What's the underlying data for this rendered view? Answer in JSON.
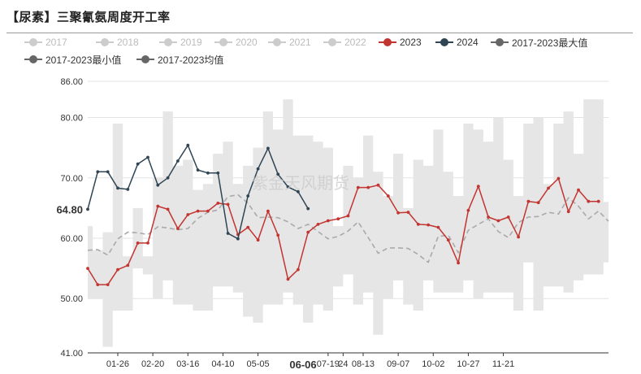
{
  "header": {
    "title": "【尿素】三聚氰氨周度开工率"
  },
  "watermark": "紫金天风期货",
  "legend": {
    "row1": [
      {
        "label": "2017",
        "color": "#cccccc"
      },
      {
        "label": "2018",
        "color": "#cccccc"
      },
      {
        "label": "2019",
        "color": "#cccccc"
      },
      {
        "label": "2020",
        "color": "#cccccc"
      },
      {
        "label": "2021",
        "color": "#cccccc"
      },
      {
        "label": "2022",
        "color": "#cccccc"
      },
      {
        "label": "2023",
        "color": "#c23531"
      },
      {
        "label": "2024",
        "color": "#2f4554"
      },
      {
        "label": "2017-2023最大值",
        "color": "#666666"
      }
    ],
    "row2": [
      {
        "label": "2017-2023最小值",
        "color": "#666666"
      },
      {
        "label": "2017-2023均值",
        "color": "#666666"
      }
    ]
  },
  "chart_data": {
    "type": "line",
    "ylim": [
      41,
      86
    ],
    "y_ticks": [
      {
        "value": 41,
        "label": "41.00"
      },
      {
        "value": 50,
        "label": "50.00"
      },
      {
        "value": 60,
        "label": "60.00"
      },
      {
        "value": 70,
        "label": "70.00"
      },
      {
        "value": 80,
        "label": "80.00"
      },
      {
        "value": 86,
        "label": "86.00"
      }
    ],
    "x_range": [
      0,
      52
    ],
    "x_ticks": [
      {
        "week": 3,
        "label": "01-26"
      },
      {
        "week": 6.5,
        "label": "02-20"
      },
      {
        "week": 10,
        "label": "03-16"
      },
      {
        "week": 13.5,
        "label": "04-10"
      },
      {
        "week": 17,
        "label": "05-05"
      },
      {
        "week": 24,
        "label": "07-19"
      },
      {
        "week": 27.5,
        "label": "08-13"
      },
      {
        "week": 31,
        "label": "09-07"
      },
      {
        "week": 34.5,
        "label": "10-02"
      },
      {
        "week": 38,
        "label": "10-27"
      },
      {
        "week": 41.5,
        "label": "11-21"
      }
    ],
    "x_extra_ticks": [
      {
        "week": 25.5,
        "label": "24"
      }
    ],
    "y_pointer": {
      "value": 64.8,
      "label": "64.80"
    },
    "x_pointer": {
      "week": 21.5,
      "label": "06-06"
    },
    "range_max": [
      62,
      58,
      61,
      79,
      57,
      65,
      57,
      70,
      81,
      72,
      73,
      68,
      69,
      74,
      76,
      69,
      72,
      75,
      81,
      78,
      83,
      77,
      77,
      76,
      75,
      62,
      72,
      70,
      77,
      71,
      67,
      74,
      65,
      73,
      72,
      78,
      71,
      67,
      79,
      78,
      76,
      80,
      73,
      67,
      79,
      80,
      69,
      79,
      81,
      74,
      83,
      83,
      66
    ],
    "range_min": [
      50,
      50,
      42,
      48,
      48,
      55,
      54,
      50,
      53,
      49,
      49,
      48,
      48,
      52,
      52,
      51,
      47,
      46,
      49,
      49,
      51,
      49,
      46,
      49,
      48,
      52,
      54,
      49,
      51,
      44,
      50,
      53,
      49,
      48,
      53,
      51,
      51,
      51,
      53,
      50,
      51,
      51,
      51,
      48,
      56,
      48,
      52,
      52,
      51,
      53,
      54,
      54,
      56
    ],
    "series": [
      {
        "name": "2017-2023均值",
        "color": "#aaaaaa",
        "dashed": true,
        "start_week": 0,
        "values": [
          58,
          58.1,
          57.2,
          59.9,
          61,
          60.9,
          60.6,
          61.9,
          61.7,
          61.4,
          61.6,
          63.3,
          64.3,
          64.7,
          66.9,
          67.2,
          65.8,
          63.4,
          63.5,
          63.4,
          62.7,
          61.6,
          62.3,
          61.1,
          59.9,
          60.3,
          61.2,
          62.7,
          60.1,
          57.5,
          58.4,
          58.4,
          58.3,
          57.3,
          56,
          60.3,
          60.5,
          57.6,
          61.3,
          62.3,
          63.2,
          61.1,
          60.1,
          62.6,
          63.5,
          63.6,
          64.3,
          64,
          66.7,
          65.3,
          63.2,
          64.5,
          62.8
        ]
      },
      {
        "name": "2023",
        "color": "#c23531",
        "dashed": false,
        "start_week": 0,
        "values": [
          55,
          52.3,
          52.3,
          54.8,
          55.5,
          59.2,
          59.2,
          65.3,
          64.8,
          61.6,
          63.9,
          64.5,
          64.5,
          65.8,
          65.6,
          60.6,
          61.8,
          59.7,
          64.5,
          60.5,
          53.2,
          54.8,
          61,
          62.3,
          62.9,
          63.2,
          63.7,
          68.4,
          68.4,
          68.8,
          67,
          64.2,
          64.3,
          62.3,
          62.2,
          61.8,
          59.7,
          55.9,
          64.6,
          68.6,
          63.5,
          62.9,
          63.5,
          60.2,
          66.1,
          65.9,
          68.3,
          69.9,
          64.4,
          68,
          66.1,
          66.1
        ]
      },
      {
        "name": "2024",
        "color": "#2f4554",
        "dashed": false,
        "start_week": 0,
        "values": [
          64.8,
          71,
          71,
          68.3,
          68.1,
          72.3,
          73.4,
          68.8,
          70,
          72.8,
          75.4,
          71.3,
          70.8,
          70.8,
          60.8,
          59.9,
          67,
          71.5,
          74.9,
          70.6,
          68.5,
          67.7,
          64.9
        ]
      }
    ]
  }
}
